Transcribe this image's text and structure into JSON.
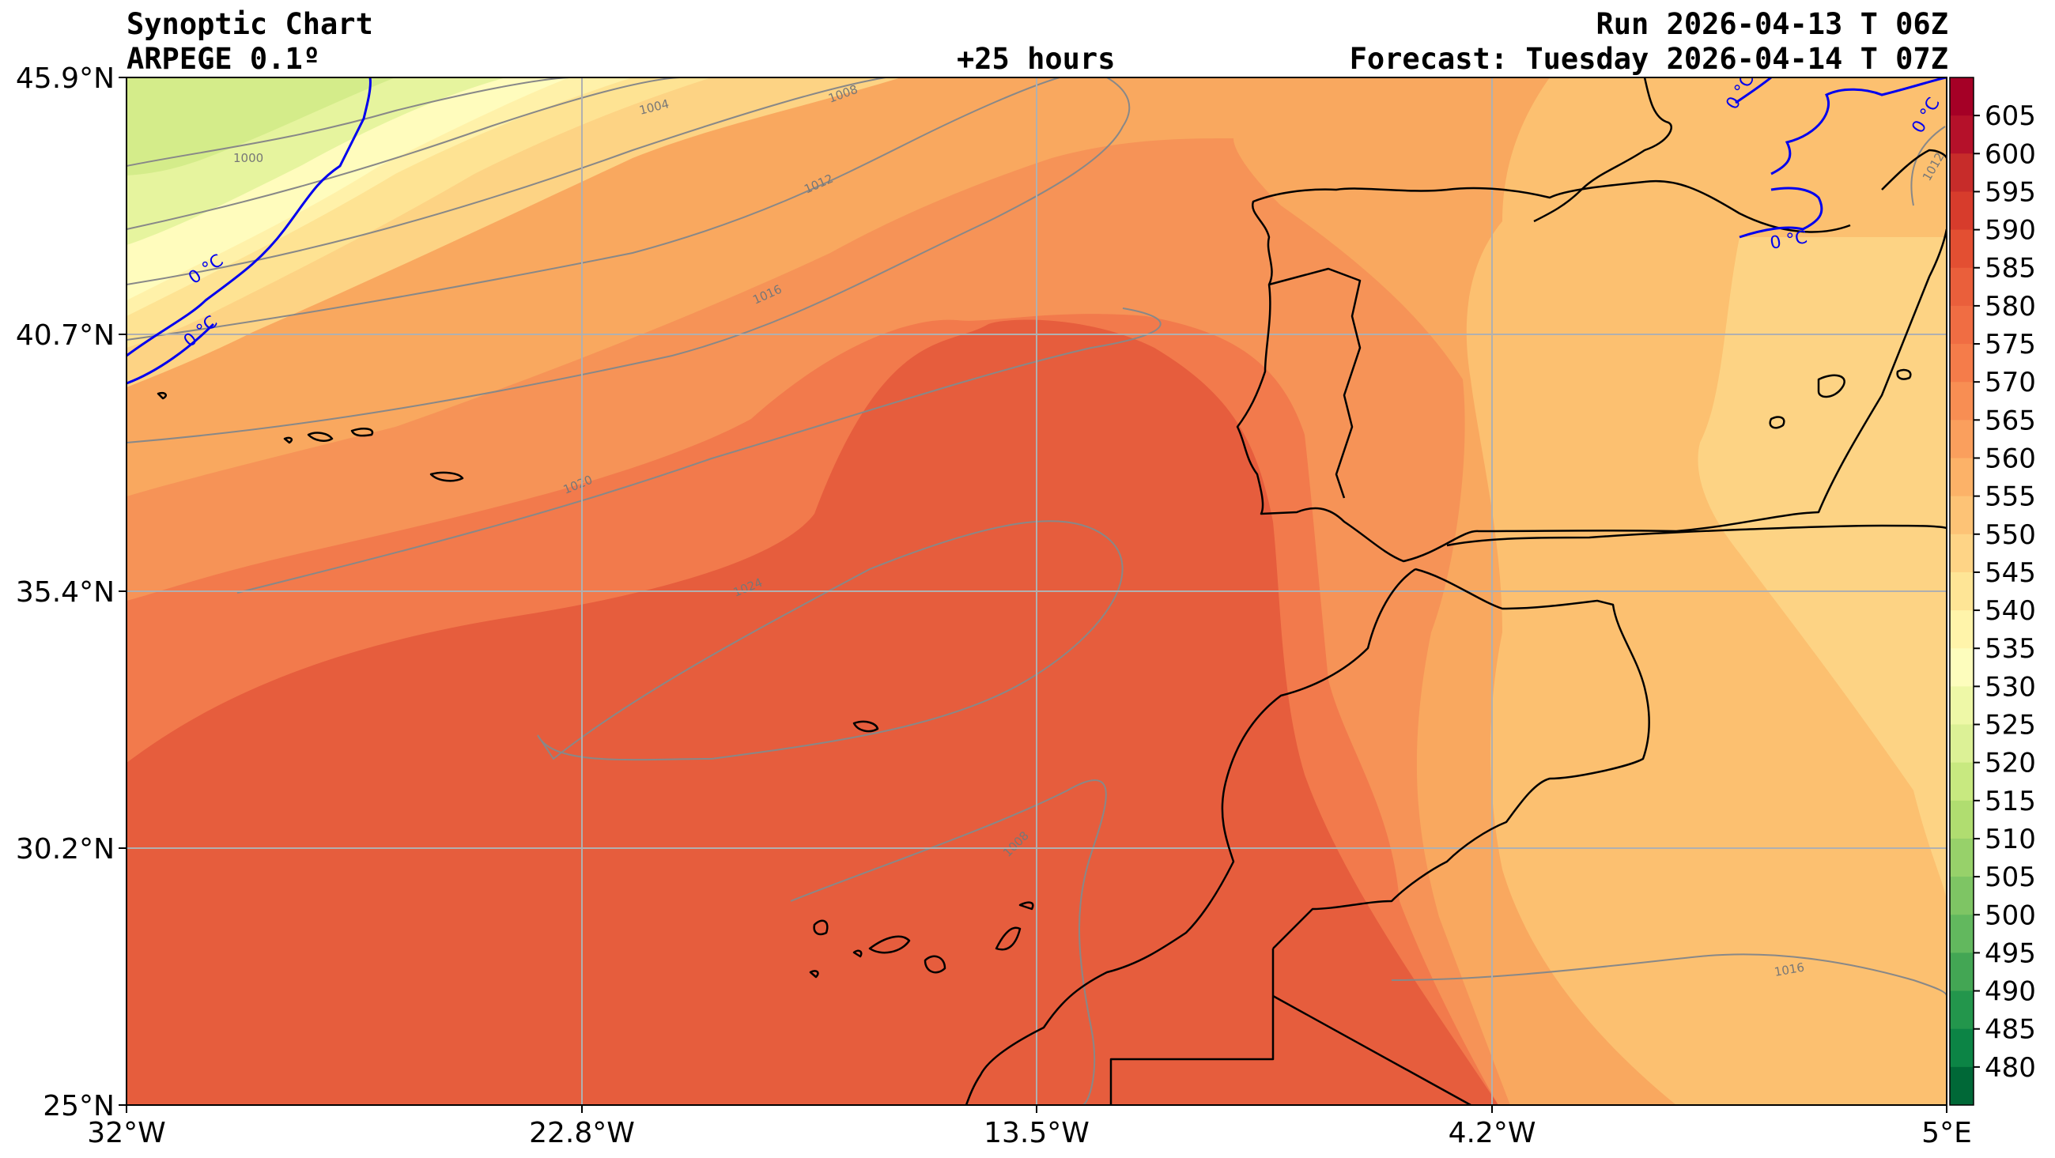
{
  "header": {
    "title_line1": "Synoptic Chart",
    "title_line2": "ARPEGE 0.1º",
    "lead_time": "+25 hours",
    "run": "Run 2026-04-13 T 06Z",
    "forecast": "Forecast: Tuesday 2026-04-14 T 07Z"
  },
  "axes": {
    "lat_labels": [
      "45.9°N",
      "40.7°N",
      "35.4°N",
      "30.2°N",
      "25°N"
    ],
    "lon_labels": [
      "32°W",
      "22.8°W",
      "13.5°W",
      "4.2°W",
      "5°E"
    ]
  },
  "colorbar": {
    "labels": [
      "605",
      "600",
      "595",
      "590",
      "585",
      "580",
      "575",
      "570",
      "565",
      "560",
      "555",
      "550",
      "545",
      "540",
      "535",
      "530",
      "525",
      "520",
      "515",
      "510",
      "505",
      "500",
      "495",
      "490",
      "485",
      "480"
    ],
    "colors": [
      "#a50026",
      "#b5112a",
      "#c72c2a",
      "#d73c2c",
      "#e34f32",
      "#ea5f3b",
      "#f06d43",
      "#f57c4a",
      "#f88e53",
      "#fa9f5d",
      "#fcb268",
      "#fdc376",
      "#fed486",
      "#fee596",
      "#fff4aa",
      "#fdfdbd",
      "#eef8a7",
      "#dcf196",
      "#c8e980",
      "#b0dd70",
      "#97d16a",
      "#7ec564",
      "#62b85e",
      "#43a654",
      "#23964c",
      "#0c8445",
      "#006837"
    ],
    "contour_steps": [
      "#006837",
      "#00733f",
      "#0f8446",
      "#1a9850",
      "#3fab5c",
      "#66bd63",
      "#87cb67",
      "#a6d96a",
      "#c2e67a",
      "#d9ef8b",
      "#eaf6a0",
      "#ffffbf",
      "#fff2a8",
      "#fee08b",
      "#fdcf7d",
      "#fdbe6f",
      "#fdae61",
      "#f99455",
      "#f67a49",
      "#ee6340",
      "#e34f33",
      "#d73027",
      "#c51f27",
      "#b10f26",
      "#a50026"
    ]
  },
  "isobars": {
    "color": "#888888",
    "labels": [
      "1000",
      "1004",
      "1008",
      "1012",
      "1016",
      "1020",
      "1024",
      "1008",
      "1016",
      "1012"
    ]
  },
  "freezing_line": {
    "label": "0 °C",
    "color": "#0000ee"
  },
  "field_colors": {
    "green_light": "#d4ec8a",
    "green_pale": "#e6f49e",
    "yellow": "#fffcbd",
    "pale_yellow": "#fff1a9",
    "light_orange": "#fee393",
    "orange_1": "#fdd384",
    "orange_2": "#fcc070",
    "orange_3": "#f9a85f",
    "orange_4": "#f69357",
    "orange_5": "#f27a4c",
    "red_1": "#ea633f",
    "red_2": "#e65d3d"
  }
}
